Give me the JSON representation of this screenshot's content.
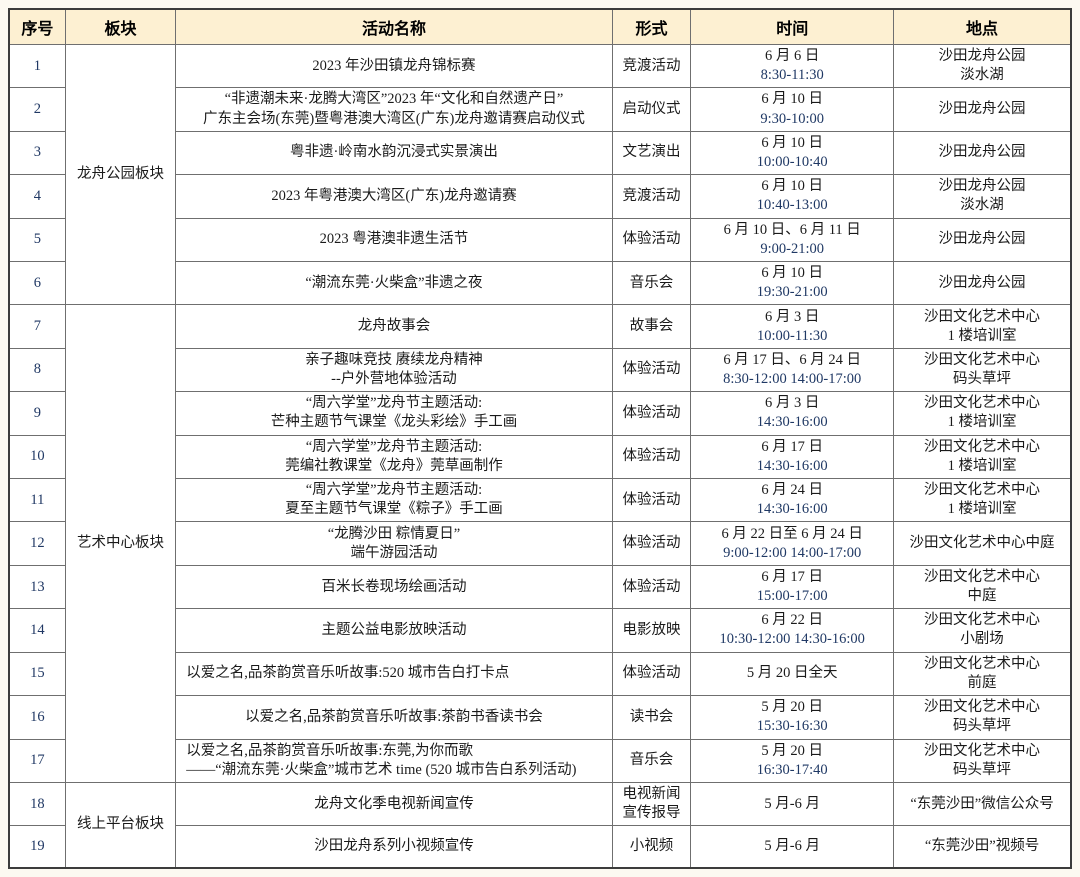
{
  "colors": {
    "header_bg": "#fdf0d2",
    "time_text": "#1f3864",
    "grid_border": "#6f6f6f",
    "outer_border": "#3c3c3c",
    "page_bg": "#fcf9f1"
  },
  "table": {
    "columns": [
      {
        "key": "no",
        "label": "序号",
        "width": "5.3%"
      },
      {
        "key": "section",
        "label": "板块",
        "width": "10.4%"
      },
      {
        "key": "name",
        "label": "活动名称",
        "width": "41.1%"
      },
      {
        "key": "form",
        "label": "形式",
        "width": "7.4%"
      },
      {
        "key": "time",
        "label": "时间",
        "width": "19.1%"
      },
      {
        "key": "place",
        "label": "地点",
        "width": "16.7%"
      }
    ],
    "groups": [
      {
        "section": "龙舟公园板块",
        "rows": [
          {
            "no": "1",
            "name_lines": [
              "2023 年沙田镇龙舟锦标赛"
            ],
            "name_align": "center",
            "form_lines": [
              "竞渡活动"
            ],
            "time_lines": [
              {
                "text": "6 月 6 日",
                "kind": "date"
              },
              {
                "text": "8:30-11:30",
                "kind": "time"
              }
            ],
            "place_lines": [
              "沙田龙舟公园",
              "淡水湖"
            ]
          },
          {
            "no": "2",
            "name_lines": [
              "“非遗潮未来·龙腾大湾区”2023 年“文化和自然遗产日”",
              "广东主会场(东莞)暨粤港澳大湾区(广东)龙舟邀请赛启动仪式"
            ],
            "name_align": "center",
            "form_lines": [
              "启动仪式"
            ],
            "time_lines": [
              {
                "text": "6 月 10 日",
                "kind": "date"
              },
              {
                "text": "9:30-10:00",
                "kind": "time"
              }
            ],
            "place_lines": [
              "沙田龙舟公园"
            ]
          },
          {
            "no": "3",
            "name_lines": [
              "粤非遗·岭南水韵沉浸式实景演出"
            ],
            "name_align": "center",
            "form_lines": [
              "文艺演出"
            ],
            "time_lines": [
              {
                "text": "6 月 10 日",
                "kind": "date"
              },
              {
                "text": "10:00-10:40",
                "kind": "time"
              }
            ],
            "place_lines": [
              "沙田龙舟公园"
            ]
          },
          {
            "no": "4",
            "name_lines": [
              "2023 年粤港澳大湾区(广东)龙舟邀请赛"
            ],
            "name_align": "center",
            "form_lines": [
              "竞渡活动"
            ],
            "time_lines": [
              {
                "text": "6 月 10 日",
                "kind": "date"
              },
              {
                "text": "10:40-13:00",
                "kind": "time"
              }
            ],
            "place_lines": [
              "沙田龙舟公园",
              "淡水湖"
            ]
          },
          {
            "no": "5",
            "name_lines": [
              "2023 粤港澳非遗生活节"
            ],
            "name_align": "center",
            "form_lines": [
              "体验活动"
            ],
            "time_lines": [
              {
                "text": "6 月 10 日、6 月 11 日",
                "kind": "date"
              },
              {
                "text": "9:00-21:00",
                "kind": "time"
              }
            ],
            "place_lines": [
              "沙田龙舟公园"
            ]
          },
          {
            "no": "6",
            "name_lines": [
              "“潮流东莞·火柴盒”非遗之夜"
            ],
            "name_align": "center",
            "form_lines": [
              "音乐会"
            ],
            "time_lines": [
              {
                "text": "6 月 10 日",
                "kind": "date"
              },
              {
                "text": "19:30-21:00",
                "kind": "time"
              }
            ],
            "place_lines": [
              "沙田龙舟公园"
            ]
          }
        ]
      },
      {
        "section": "艺术中心板块",
        "rows": [
          {
            "no": "7",
            "name_lines": [
              "龙舟故事会"
            ],
            "name_align": "center",
            "form_lines": [
              "故事会"
            ],
            "time_lines": [
              {
                "text": "6 月 3 日",
                "kind": "date"
              },
              {
                "text": "10:00-11:30",
                "kind": "time"
              }
            ],
            "place_lines": [
              "沙田文化艺术中心",
              "1 楼培训室"
            ]
          },
          {
            "no": "8",
            "name_lines": [
              "亲子趣味竞技 赓续龙舟精神",
              "--户外营地体验活动"
            ],
            "name_align": "center",
            "form_lines": [
              "体验活动"
            ],
            "time_lines": [
              {
                "text": "6 月 17 日、6 月 24 日",
                "kind": "date"
              },
              {
                "text": "8:30-12:00  14:00-17:00",
                "kind": "time"
              }
            ],
            "place_lines": [
              "沙田文化艺术中心",
              "码头草坪"
            ]
          },
          {
            "no": "9",
            "name_lines": [
              "“周六学堂”龙舟节主题活动:",
              "芒种主题节气课堂《龙头彩绘》手工画"
            ],
            "name_align": "center",
            "form_lines": [
              "体验活动"
            ],
            "time_lines": [
              {
                "text": "6 月 3 日",
                "kind": "date"
              },
              {
                "text": "14:30-16:00",
                "kind": "time"
              }
            ],
            "place_lines": [
              "沙田文化艺术中心",
              "1 楼培训室"
            ]
          },
          {
            "no": "10",
            "name_lines": [
              "“周六学堂”龙舟节主题活动:",
              "莞编社教课堂《龙舟》莞草画制作"
            ],
            "name_align": "center",
            "form_lines": [
              "体验活动"
            ],
            "time_lines": [
              {
                "text": "6 月 17 日",
                "kind": "date"
              },
              {
                "text": "14:30-16:00",
                "kind": "time"
              }
            ],
            "place_lines": [
              "沙田文化艺术中心",
              "1 楼培训室"
            ]
          },
          {
            "no": "11",
            "name_lines": [
              "“周六学堂”龙舟节主题活动:",
              "夏至主题节气课堂《粽子》手工画"
            ],
            "name_align": "center",
            "form_lines": [
              "体验活动"
            ],
            "time_lines": [
              {
                "text": "6 月 24 日",
                "kind": "date"
              },
              {
                "text": "14:30-16:00",
                "kind": "time"
              }
            ],
            "place_lines": [
              "沙田文化艺术中心",
              "1 楼培训室"
            ]
          },
          {
            "no": "12",
            "name_lines": [
              "“龙腾沙田 粽情夏日”",
              "端午游园活动"
            ],
            "name_align": "center",
            "form_lines": [
              "体验活动"
            ],
            "time_lines": [
              {
                "text": "6 月 22 日至 6 月 24 日",
                "kind": "date"
              },
              {
                "text": "9:00-12:00 14:00-17:00",
                "kind": "time"
              }
            ],
            "place_lines": [
              "沙田文化艺术中心中庭"
            ]
          },
          {
            "no": "13",
            "name_lines": [
              "百米长卷现场绘画活动"
            ],
            "name_align": "center",
            "form_lines": [
              "体验活动"
            ],
            "time_lines": [
              {
                "text": "6 月 17 日",
                "kind": "date"
              },
              {
                "text": "15:00-17:00",
                "kind": "time"
              }
            ],
            "place_lines": [
              "沙田文化艺术中心",
              "中庭"
            ]
          },
          {
            "no": "14",
            "name_lines": [
              "主题公益电影放映活动"
            ],
            "name_align": "center",
            "form_lines": [
              "电影放映"
            ],
            "time_lines": [
              {
                "text": "6 月 22 日",
                "kind": "date"
              },
              {
                "text": "10:30-12:00 14:30-16:00",
                "kind": "time"
              }
            ],
            "place_lines": [
              "沙田文化艺术中心",
              "小剧场"
            ]
          },
          {
            "no": "15",
            "name_lines": [
              "以爱之名,品茶韵赏音乐听故事:520 城市告白打卡点"
            ],
            "name_align": "left",
            "form_lines": [
              "体验活动"
            ],
            "time_lines": [
              {
                "text": "5 月 20 日全天",
                "kind": "date"
              }
            ],
            "place_lines": [
              "沙田文化艺术中心",
              "前庭"
            ]
          },
          {
            "no": "16",
            "name_lines": [
              "以爱之名,品茶韵赏音乐听故事:茶韵书香读书会"
            ],
            "name_align": "center",
            "form_lines": [
              "读书会"
            ],
            "time_lines": [
              {
                "text": "5 月 20 日",
                "kind": "date"
              },
              {
                "text": "15:30-16:30",
                "kind": "time"
              }
            ],
            "place_lines": [
              "沙田文化艺术中心",
              "码头草坪"
            ]
          },
          {
            "no": "17",
            "name_lines": [
              "以爱之名,品茶韵赏音乐听故事:东莞,为你而歌",
              "——“潮流东莞·火柴盒”城市艺术 time (520 城市告白系列活动)"
            ],
            "name_align": "left",
            "form_lines": [
              "音乐会"
            ],
            "time_lines": [
              {
                "text": "5 月 20 日",
                "kind": "date"
              },
              {
                "text": "16:30-17:40",
                "kind": "time"
              }
            ],
            "place_lines": [
              "沙田文化艺术中心",
              "码头草坪"
            ]
          }
        ]
      },
      {
        "section": "线上平台板块",
        "rows": [
          {
            "no": "18",
            "name_lines": [
              "龙舟文化季电视新闻宣传"
            ],
            "name_align": "center",
            "form_lines": [
              "电视新闻",
              "宣传报导"
            ],
            "time_lines": [
              {
                "text": "5 月-6 月",
                "kind": "date"
              }
            ],
            "place_lines": [
              "“东莞沙田”微信公众号"
            ]
          },
          {
            "no": "19",
            "name_lines": [
              "沙田龙舟系列小视频宣传"
            ],
            "name_align": "center",
            "form_lines": [
              "小视频"
            ],
            "time_lines": [
              {
                "text": "5 月-6 月",
                "kind": "date"
              }
            ],
            "place_lines": [
              "“东莞沙田”视频号"
            ]
          }
        ]
      }
    ]
  }
}
